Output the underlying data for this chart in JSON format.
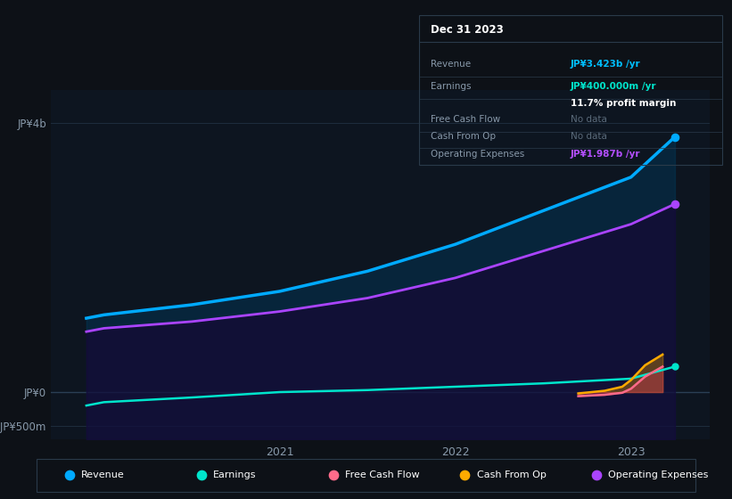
{
  "bg_color": "#0d1117",
  "chart_bg": "#0d1520",
  "grid_color": "#1e2d3d",
  "title_date": "Dec 31 2023",
  "y_ticks": [
    "JP¥4b",
    "JP¥0",
    "-JP¥500m"
  ],
  "y_tick_values": [
    4000,
    0,
    -500
  ],
  "ylim": [
    -700,
    4500
  ],
  "xlim": [
    2019.7,
    2023.45
  ],
  "x_ticks": [
    2021,
    2022,
    2023
  ],
  "series": {
    "Revenue": {
      "x": [
        2019.9,
        2020.0,
        2020.5,
        2021.0,
        2021.5,
        2022.0,
        2022.5,
        2023.0,
        2023.25
      ],
      "y": [
        1100,
        1150,
        1300,
        1500,
        1800,
        2200,
        2700,
        3200,
        3800
      ],
      "color": "#00aaff",
      "linewidth": 2.5,
      "zorder": 5
    },
    "Earnings": {
      "x": [
        2019.9,
        2020.0,
        2020.5,
        2021.0,
        2021.5,
        2022.0,
        2022.5,
        2023.0,
        2023.25
      ],
      "y": [
        -200,
        -150,
        -80,
        0,
        30,
        80,
        130,
        200,
        380
      ],
      "color": "#00e5cc",
      "linewidth": 1.8,
      "zorder": 6
    },
    "Free Cash Flow": {
      "x": [
        2022.7,
        2022.85,
        2022.95,
        2023.0,
        2023.08,
        2023.18
      ],
      "y": [
        -60,
        -40,
        -10,
        50,
        230,
        380
      ],
      "color": "#ff6b8a",
      "linewidth": 1.8,
      "zorder": 7
    },
    "Cash From Op": {
      "x": [
        2022.7,
        2022.85,
        2022.95,
        2023.0,
        2023.08,
        2023.18
      ],
      "y": [
        -20,
        20,
        80,
        180,
        400,
        560
      ],
      "color": "#ffaa00",
      "linewidth": 1.8,
      "zorder": 8
    },
    "Operating Expenses": {
      "x": [
        2019.9,
        2020.0,
        2020.5,
        2021.0,
        2021.5,
        2022.0,
        2022.5,
        2023.0,
        2023.25
      ],
      "y": [
        900,
        950,
        1050,
        1200,
        1400,
        1700,
        2100,
        2500,
        2800
      ],
      "color": "#aa44ff",
      "linewidth": 2.0,
      "zorder": 4
    }
  },
  "legend": [
    {
      "label": "Revenue",
      "color": "#00aaff"
    },
    {
      "label": "Earnings",
      "color": "#00e5cc"
    },
    {
      "label": "Free Cash Flow",
      "color": "#ff6b8a"
    },
    {
      "label": "Cash From Op",
      "color": "#ffaa00"
    },
    {
      "label": "Operating Expenses",
      "color": "#aa44ff"
    }
  ],
  "infobox": {
    "title": "Dec 31 2023",
    "rows": [
      {
        "label": "Revenue",
        "value": "JP¥3.423b /yr",
        "value_color": "#00bfff",
        "label_color": "#8899aa"
      },
      {
        "label": "Earnings",
        "value": "JP¥400.000m /yr",
        "value_color": "#00e5cc",
        "label_color": "#8899aa"
      },
      {
        "label": "",
        "value": "11.7% profit margin",
        "value_color": "#ffffff",
        "label_color": "#8899aa"
      },
      {
        "label": "Free Cash Flow",
        "value": "No data",
        "value_color": "#5a6a7a",
        "label_color": "#8899aa"
      },
      {
        "label": "Cash From Op",
        "value": "No data",
        "value_color": "#5a6a7a",
        "label_color": "#8899aa"
      },
      {
        "label": "Operating Expenses",
        "value": "JP¥1.987b /yr",
        "value_color": "#b44fff",
        "label_color": "#8899aa"
      }
    ]
  }
}
